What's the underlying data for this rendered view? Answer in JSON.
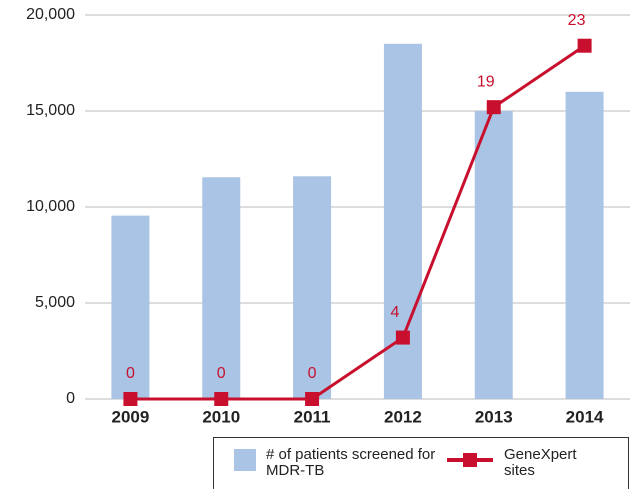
{
  "chart_data": {
    "type": "bar_line",
    "categories": [
      "2009",
      "2010",
      "2011",
      "2012",
      "2013",
      "2014"
    ],
    "series": [
      {
        "name": "# of patients screened for MDR-TB",
        "color": "#a9c4e4",
        "type": "bar",
        "values": [
          9550,
          11550,
          11600,
          18500,
          15000,
          16000
        ]
      },
      {
        "name": "GeneXpert sites",
        "color": "#c8102e",
        "type": "line",
        "axis": "y2",
        "values": [
          0,
          0,
          0,
          4,
          19,
          23
        ]
      }
    ],
    "ylim": [
      0,
      20000
    ],
    "yticks": [
      0,
      {
        "value": 5000,
        "label": "5,000"
      },
      {
        "value": 10000,
        "label": "10,000"
      },
      {
        "value": 15000,
        "label": "15,000"
      },
      {
        "value": 20000,
        "label": "20,000"
      }
    ],
    "y2lim": [
      0,
      25
    ],
    "grid": true
  }
}
